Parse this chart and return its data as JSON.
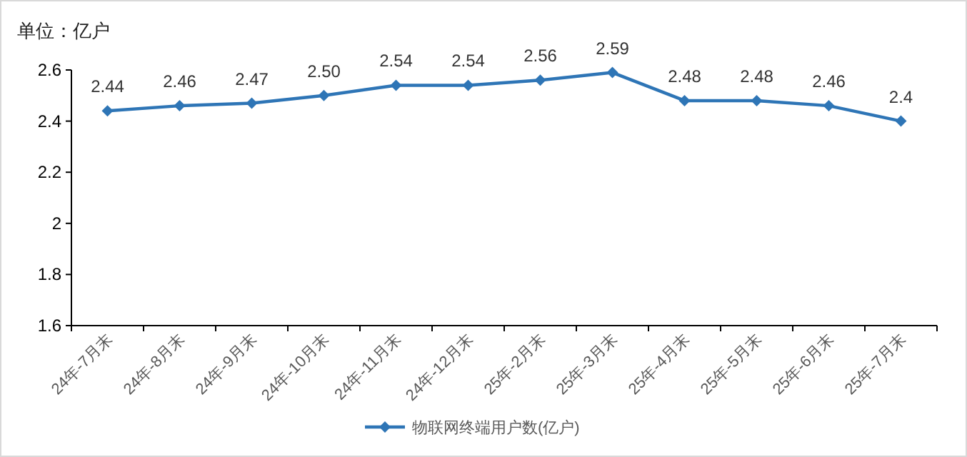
{
  "chart_data": {
    "type": "line",
    "ylabel": "单位：亿户",
    "categories": [
      "24年-7月末",
      "24年-8月末",
      "24年-9月末",
      "24年-10月末",
      "24年-11月末",
      "24年-12月末",
      "25年-2月末",
      "25年-3月末",
      "25年-4月末",
      "25年-5月末",
      "25年-6月末",
      "25年-7月末"
    ],
    "series": [
      {
        "name": "物联网终端用户数(亿户)",
        "color": "#2e75b6",
        "values": [
          2.44,
          2.46,
          2.47,
          2.5,
          2.54,
          2.54,
          2.56,
          2.59,
          2.48,
          2.48,
          2.46,
          2.4
        ],
        "value_labels": [
          "2.44",
          "2.46",
          "2.47",
          "2.50",
          "2.54",
          "2.54",
          "2.56",
          "2.59",
          "2.48",
          "2.48",
          "2.46",
          "2.4"
        ]
      }
    ],
    "ylim": [
      1.6,
      2.6
    ],
    "yticks": [
      1.6,
      1.8,
      2,
      2.2,
      2.4,
      2.6
    ],
    "legend": "bottom",
    "marker": "diamond",
    "line_style": "solid"
  }
}
